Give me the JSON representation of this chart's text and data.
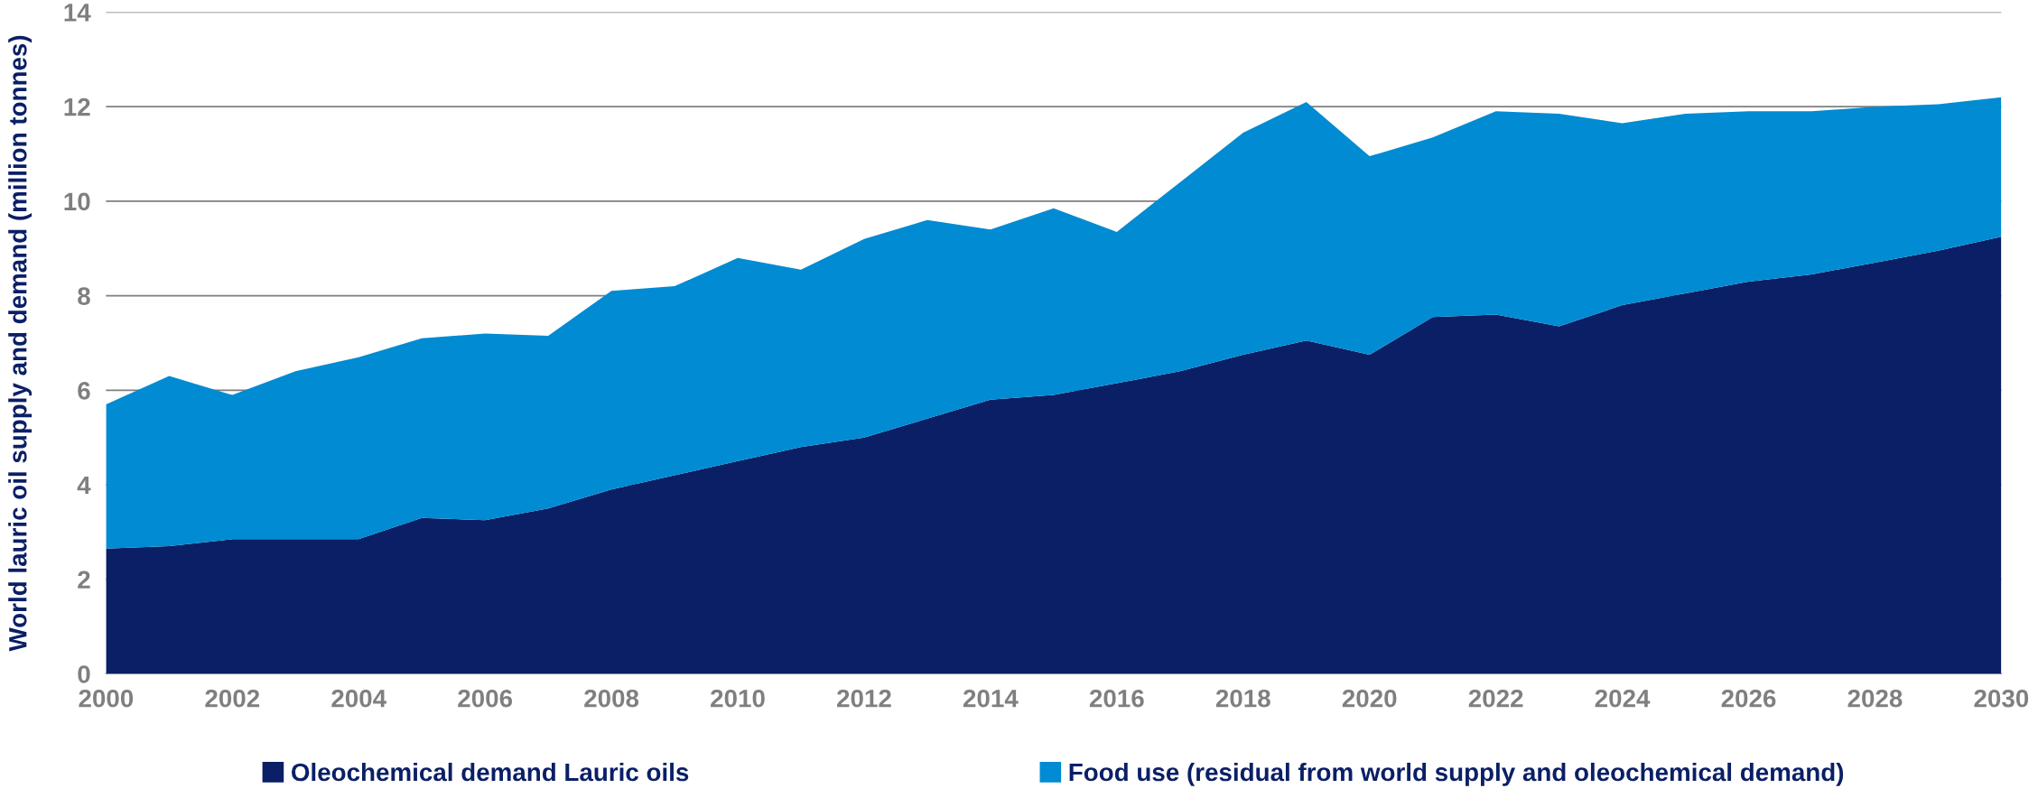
{
  "chart_data": {
    "type": "area",
    "stacked": true,
    "ylabel": "World lauric oil supply and demand (million tonnes)",
    "x": [
      2000,
      2001,
      2002,
      2003,
      2004,
      2005,
      2006,
      2007,
      2008,
      2009,
      2010,
      2011,
      2012,
      2013,
      2014,
      2015,
      2016,
      2017,
      2018,
      2019,
      2020,
      2021,
      2022,
      2023,
      2024,
      2025,
      2026,
      2027,
      2028,
      2029,
      2030
    ],
    "series": [
      {
        "name": "Oleochemical demand Lauric oils",
        "color": "#0a1f66",
        "values": [
          2.65,
          2.7,
          2.85,
          2.85,
          2.85,
          3.3,
          3.25,
          3.5,
          3.9,
          4.2,
          4.5,
          4.8,
          5.0,
          5.4,
          5.8,
          5.9,
          6.15,
          6.4,
          6.75,
          7.05,
          6.75,
          7.55,
          7.6,
          7.35,
          7.8,
          8.05,
          8.3,
          8.45,
          8.7,
          8.95,
          9.25
        ]
      },
      {
        "name": "Food use (residual from world supply and oleochemical demand)",
        "color": "#008bd2",
        "values": [
          3.05,
          3.6,
          3.05,
          3.55,
          3.85,
          3.8,
          3.95,
          3.65,
          4.2,
          4.0,
          4.3,
          3.75,
          4.2,
          4.2,
          3.6,
          3.95,
          3.2,
          4.0,
          4.7,
          5.05,
          4.2,
          3.8,
          4.3,
          4.5,
          3.85,
          3.8,
          3.6,
          3.45,
          3.3,
          3.1,
          2.95
        ]
      }
    ],
    "xlim": [
      2000,
      2030
    ],
    "xticks": [
      2000,
      2002,
      2004,
      2006,
      2008,
      2010,
      2012,
      2014,
      2016,
      2018,
      2020,
      2022,
      2024,
      2026,
      2028,
      2030
    ],
    "ylim": [
      0,
      14
    ],
    "yticks": [
      0,
      2,
      4,
      6,
      8,
      10,
      12,
      14
    ],
    "grid": "y",
    "legend": "bottom"
  }
}
